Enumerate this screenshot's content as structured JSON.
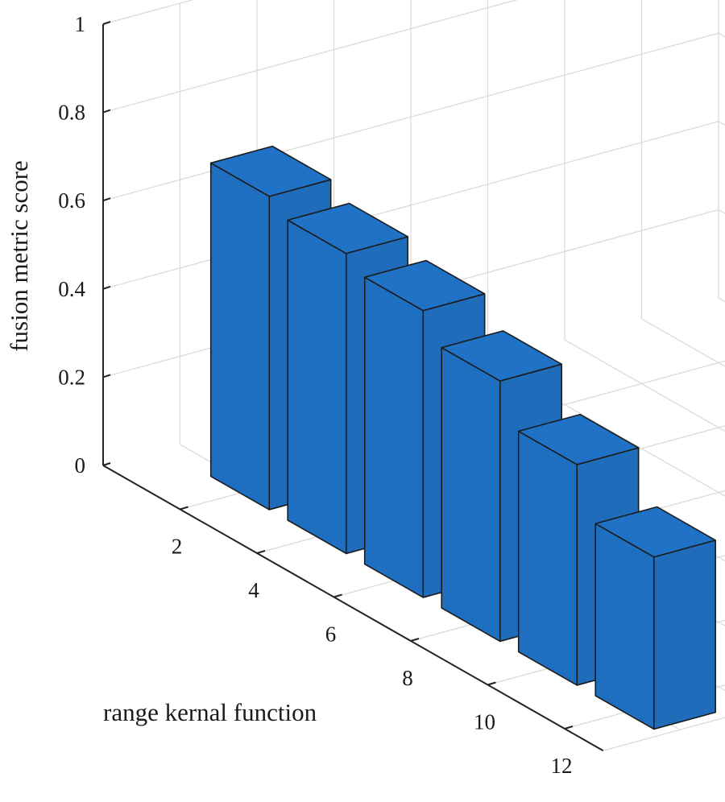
{
  "chart_data": {
    "type": "bar",
    "style": "3d",
    "title": "",
    "xlabel": "range kernal function",
    "ylabel": "fusion metric score",
    "categories": [
      "2",
      "4",
      "6",
      "8",
      "10",
      "12"
    ],
    "values": [
      0.71,
      0.68,
      0.65,
      0.59,
      0.5,
      0.39
    ],
    "zlim": [
      0,
      1
    ],
    "z_ticks": [
      "0",
      "0.2",
      "0.4",
      "0.6",
      "0.8",
      "1"
    ],
    "grid": true,
    "bar_color": "#1f6fc0"
  }
}
